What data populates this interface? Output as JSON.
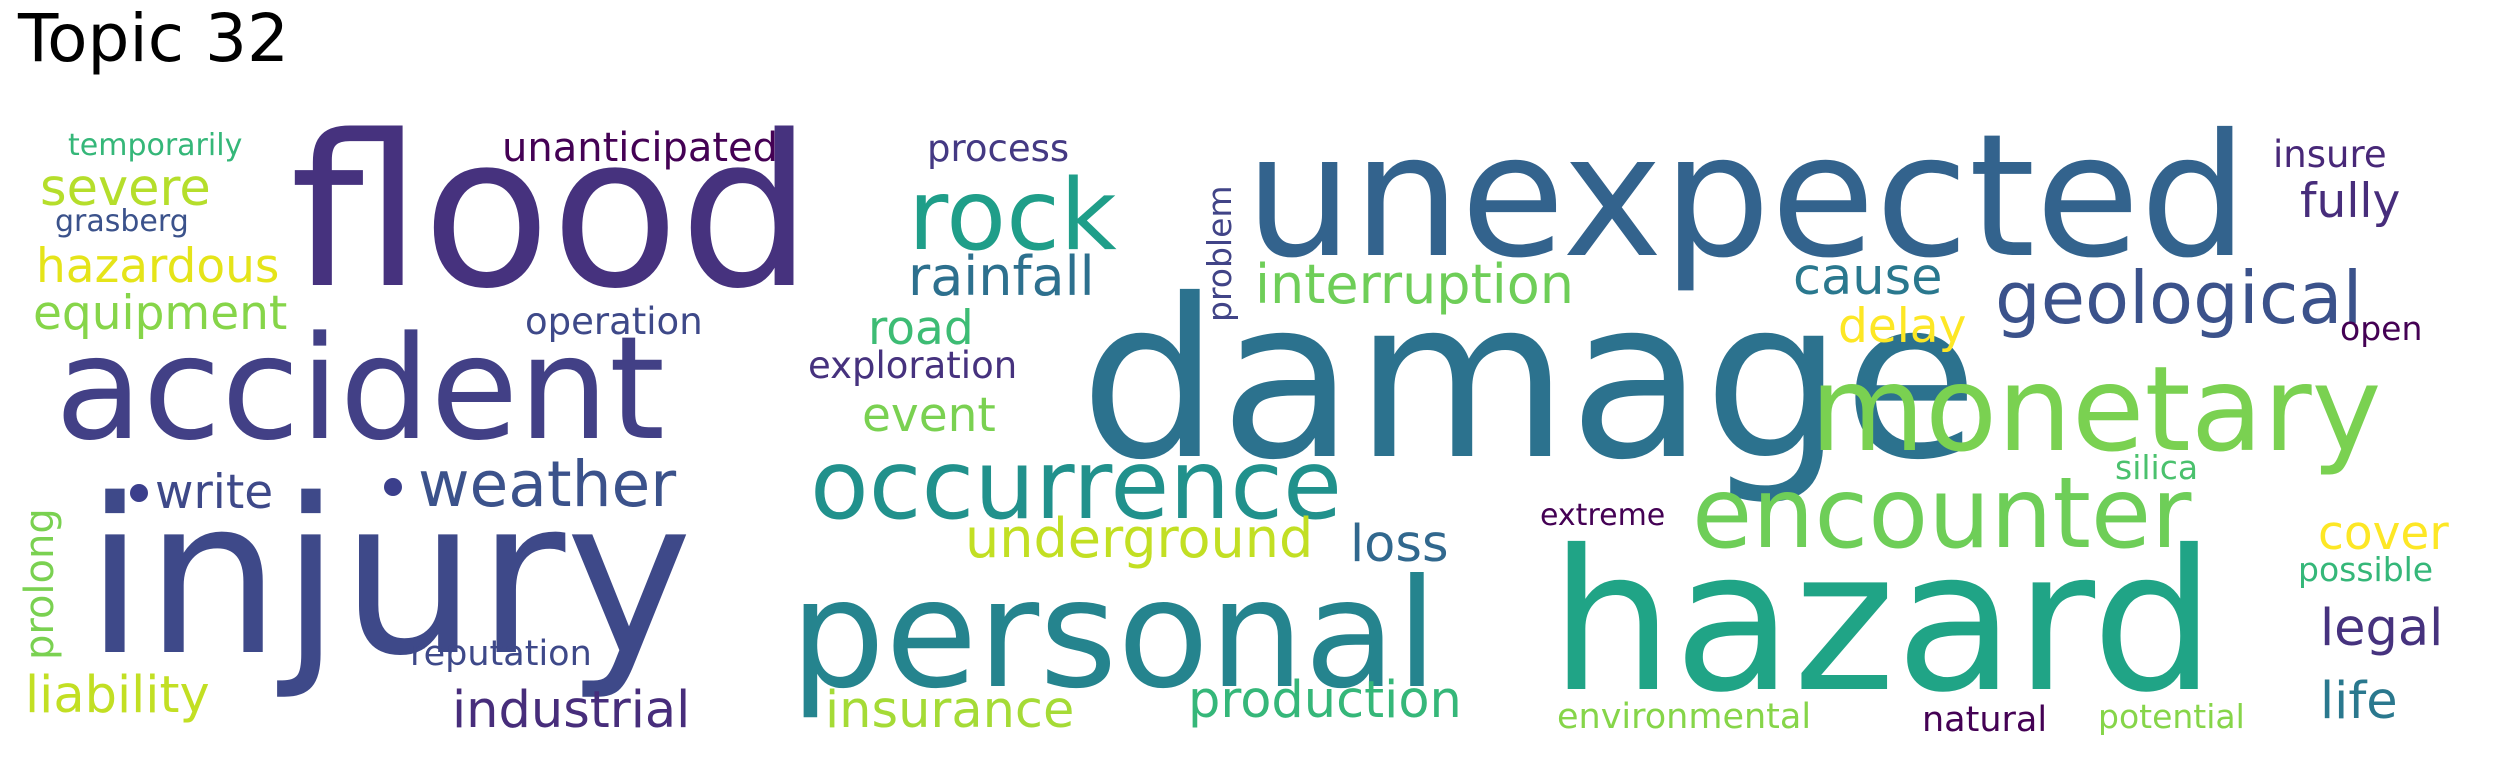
{
  "title": "Topic 32",
  "words": [
    {
      "text": "flood",
      "color": "#46327e"
    },
    {
      "text": "unexpected",
      "color": "#33638d"
    },
    {
      "text": "damage",
      "color": "#2c728e"
    },
    {
      "text": "injury",
      "color": "#3e4989"
    },
    {
      "text": "accident",
      "color": "#424086"
    },
    {
      "text": "hazard",
      "color": "#20a486"
    },
    {
      "text": "personal",
      "color": "#25848e"
    },
    {
      "text": "monetary",
      "color": "#7ad151"
    },
    {
      "text": "occurrence",
      "color": "#21918c"
    },
    {
      "text": "encounter",
      "color": "#6ece58"
    },
    {
      "text": "rock",
      "color": "#1f9e89"
    },
    {
      "text": "geological",
      "color": "#3b528b"
    },
    {
      "text": "weather",
      "color": "#3b528b"
    },
    {
      "text": "interruption",
      "color": "#6ece58"
    },
    {
      "text": "rainfall",
      "color": "#2d708e"
    },
    {
      "text": "hazardous",
      "color": "#e5e419"
    },
    {
      "text": "severe",
      "color": "#b5de2b"
    },
    {
      "text": "equipment",
      "color": "#86d549"
    },
    {
      "text": "liability",
      "color": "#c2df23"
    },
    {
      "text": "unanticipated",
      "color": "#440154"
    },
    {
      "text": "underground",
      "color": "#c2df23"
    },
    {
      "text": "insurance",
      "color": "#a5db36"
    },
    {
      "text": "production",
      "color": "#35b779"
    },
    {
      "text": "industrial",
      "color": "#472d7b"
    },
    {
      "text": "cause",
      "color": "#2a788e"
    },
    {
      "text": "delay",
      "color": "#fde725"
    },
    {
      "text": "fully",
      "color": "#472d7b"
    },
    {
      "text": "legal",
      "color": "#46327e"
    },
    {
      "text": "life",
      "color": "#2a788e"
    },
    {
      "text": "cover",
      "color": "#fde725"
    },
    {
      "text": "road",
      "color": "#3dbc74"
    },
    {
      "text": "event",
      "color": "#7ad151"
    },
    {
      "text": "loss",
      "color": "#31688e"
    },
    {
      "text": "write",
      "color": "#3e4989"
    },
    {
      "text": "prolong",
      "color": "#7ad151"
    },
    {
      "text": "problem",
      "color": "#414487"
    },
    {
      "text": "insure",
      "color": "#482878"
    },
    {
      "text": "open",
      "color": "#440154"
    },
    {
      "text": "process",
      "color": "#443983"
    },
    {
      "text": "operation",
      "color": "#3e4989"
    },
    {
      "text": "exploration",
      "color": "#46327e"
    },
    {
      "text": "reputation",
      "color": "#3e4989"
    },
    {
      "text": "temporarily",
      "color": "#35b779"
    },
    {
      "text": "grasberg",
      "color": "#3b528b"
    },
    {
      "text": "silica",
      "color": "#4ac16d"
    },
    {
      "text": "possible",
      "color": "#35b779"
    },
    {
      "text": "extreme",
      "color": "#440154"
    },
    {
      "text": "environmental",
      "color": "#86d549"
    },
    {
      "text": "natural",
      "color": "#440154"
    },
    {
      "text": "potential",
      "color": "#86d549"
    }
  ]
}
